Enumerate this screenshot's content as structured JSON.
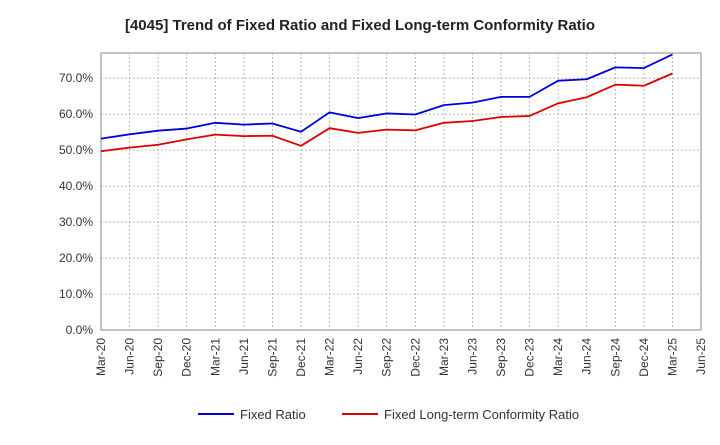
{
  "chart_data": {
    "type": "line",
    "title": "[4045]  Trend of Fixed Ratio and Fixed Long-term Conformity Ratio",
    "xlabel": "",
    "ylabel": "",
    "categories": [
      "Mar-20",
      "Jun-20",
      "Sep-20",
      "Dec-20",
      "Mar-21",
      "Jun-21",
      "Sep-21",
      "Dec-21",
      "Mar-22",
      "Jun-22",
      "Sep-22",
      "Dec-22",
      "Mar-23",
      "Jun-23",
      "Sep-23",
      "Dec-23",
      "Mar-24",
      "Jun-24",
      "Sep-24",
      "Dec-24",
      "Mar-25",
      "Jun-25"
    ],
    "y_ticks": [
      "0.0%",
      "10.0%",
      "20.0%",
      "30.0%",
      "40.0%",
      "50.0%",
      "60.0%",
      "70.0%"
    ],
    "ylim": [
      0,
      77
    ],
    "grid": true,
    "legend_position": "bottom",
    "series": [
      {
        "name": "Fixed Ratio",
        "color": "#0000dd",
        "values": [
          53.2,
          54.4,
          55.4,
          56.0,
          57.6,
          57.1,
          57.4,
          55.1,
          60.5,
          58.9,
          60.2,
          59.9,
          62.5,
          63.2,
          64.8,
          64.8,
          69.3,
          69.7,
          73.0,
          72.8,
          76.6,
          null
        ]
      },
      {
        "name": "Fixed Long-term Conformity Ratio",
        "color": "#dd0000",
        "values": [
          49.7,
          50.7,
          51.5,
          53.0,
          54.3,
          53.9,
          54.0,
          51.2,
          56.1,
          54.8,
          55.7,
          55.5,
          57.6,
          58.1,
          59.2,
          59.5,
          63.0,
          64.7,
          68.2,
          67.9,
          71.3,
          null
        ]
      }
    ]
  }
}
